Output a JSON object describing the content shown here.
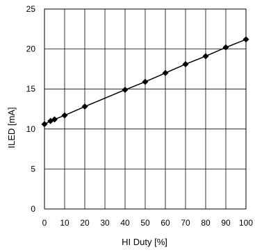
{
  "chart_data": {
    "type": "line",
    "title": "",
    "xlabel": "HI Duty [%]",
    "ylabel": "ILED [mA]",
    "xlim": [
      0,
      100
    ],
    "ylim": [
      0,
      25
    ],
    "x_ticks": [
      "0",
      "10",
      "20",
      "30",
      "40",
      "50",
      "60",
      "70",
      "80",
      "90",
      "100"
    ],
    "y_ticks": [
      "0",
      "5",
      "10",
      "15",
      "20",
      "25"
    ],
    "grid": true,
    "legend": "none",
    "series": [
      {
        "color": "#000000",
        "marker": "diamond",
        "x": [
          0,
          3,
          5,
          10,
          20,
          40,
          50,
          60,
          70,
          80,
          90,
          100
        ],
        "y": [
          10.6,
          11.0,
          11.2,
          11.7,
          12.8,
          14.9,
          15.9,
          17.0,
          18.1,
          19.1,
          20.2,
          21.2
        ]
      }
    ]
  }
}
